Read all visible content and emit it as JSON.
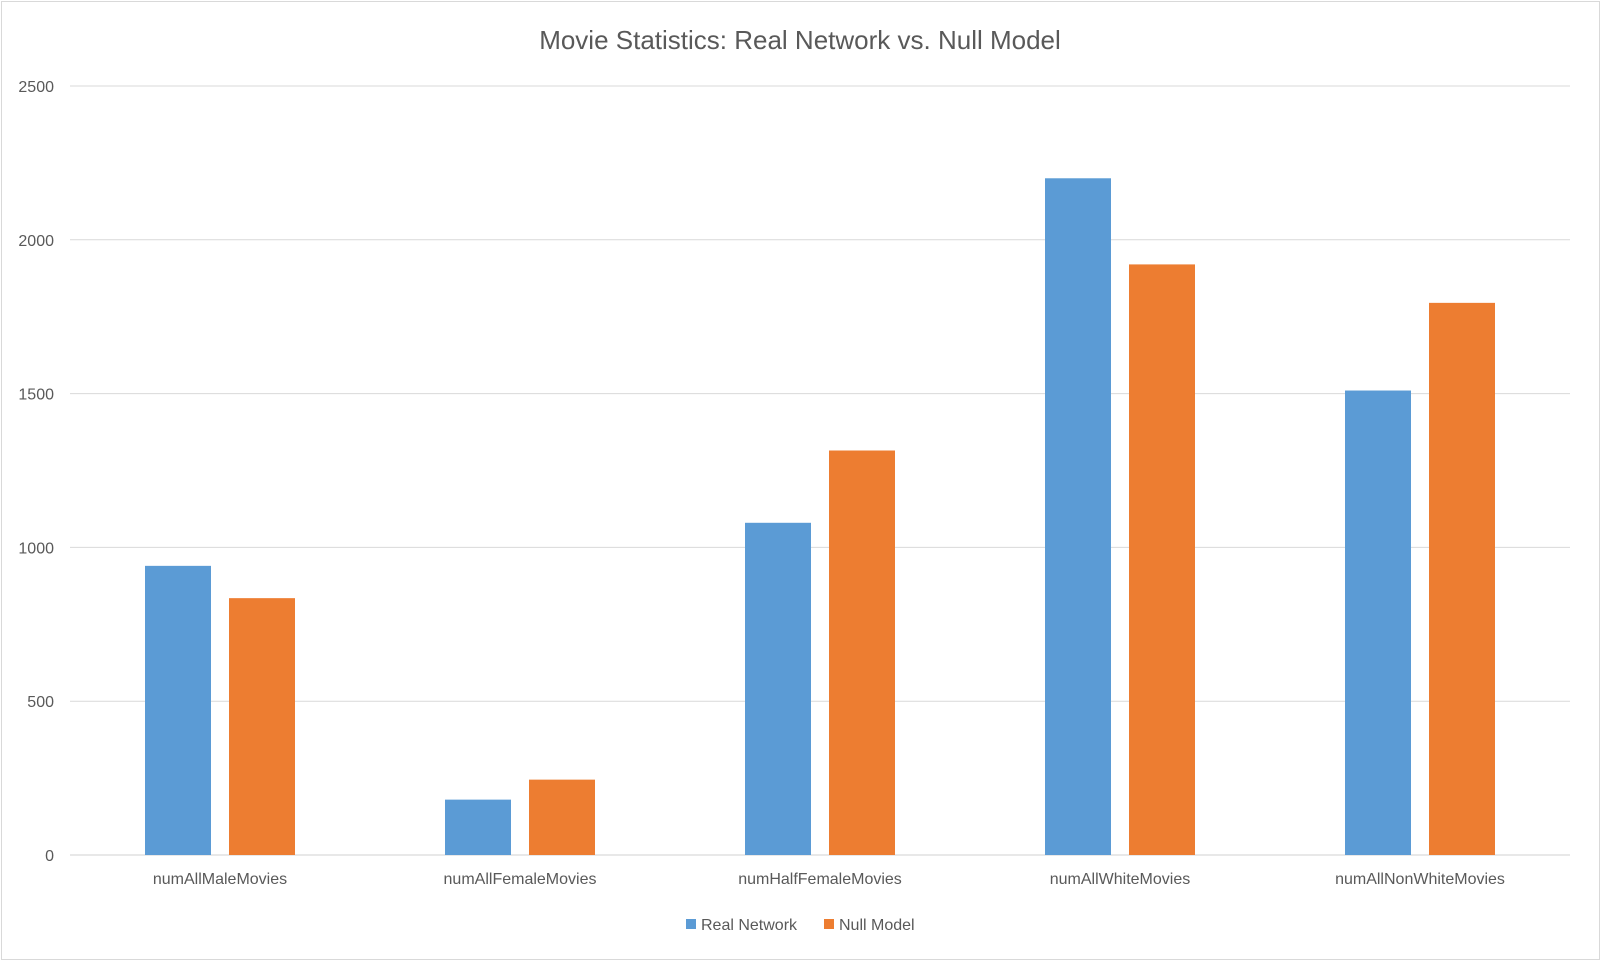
{
  "chart_data": {
    "type": "bar",
    "title": "Movie Statistics: Real Network vs. Null Model",
    "xlabel": "",
    "ylabel": "",
    "categories": [
      "numAllMaleMovies",
      "numAllFemaleMovies",
      "numHalfFemaleMovies",
      "numAllWhiteMovies",
      "numAllNonWhiteMovies"
    ],
    "series": [
      {
        "name": "Real Network",
        "color": "#5b9bd5",
        "values": [
          940,
          180,
          1080,
          2200,
          1510
        ]
      },
      {
        "name": "Null Model",
        "color": "#ed7d31",
        "values": [
          835,
          245,
          1315,
          1920,
          1795
        ]
      }
    ],
    "ylim": [
      0,
      2500
    ],
    "yticks": [
      "0",
      "500",
      "1000",
      "1500",
      "2000",
      "2500"
    ],
    "grid": true,
    "legend": "bottom"
  }
}
